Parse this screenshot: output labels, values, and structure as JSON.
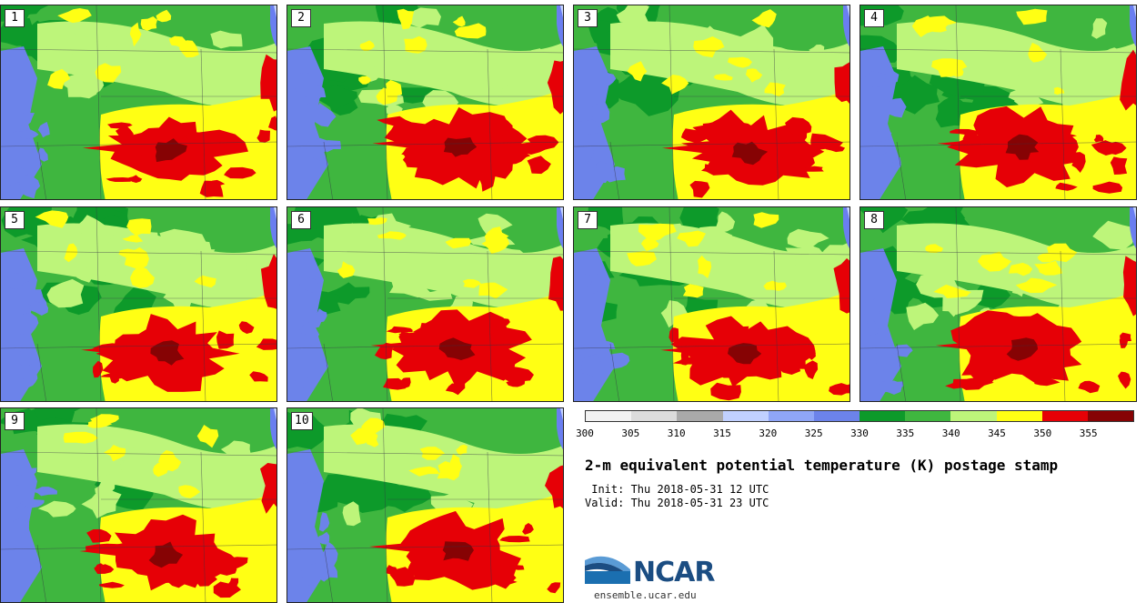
{
  "panels": [
    {
      "label": "1"
    },
    {
      "label": "2"
    },
    {
      "label": "3"
    },
    {
      "label": "4"
    },
    {
      "label": "5"
    },
    {
      "label": "6"
    },
    {
      "label": "7"
    },
    {
      "label": "8"
    },
    {
      "label": "9"
    },
    {
      "label": "10"
    }
  ],
  "colorbar": {
    "colors": [
      "#f2f2f2",
      "#dcdcdc",
      "#aaaaaa",
      "#c1d1ff",
      "#8fa6f7",
      "#6c83ea",
      "#0d9a2a",
      "#3fb63f",
      "#bdf57a",
      "#ffff14",
      "#e60006",
      "#860304"
    ],
    "tick_labels": [
      "300",
      "305",
      "310",
      "315",
      "320",
      "325",
      "330",
      "335",
      "340",
      "345",
      "350",
      "355"
    ]
  },
  "title": "2-m equivalent potential temperature (K) postage stamp",
  "init": " Init: Thu 2018-05-31 12 UTC",
  "valid": "Valid: Thu 2018-05-31 23 UTC",
  "logo": {
    "text": "NCAR",
    "url": "ensemble.ucar.edu"
  },
  "map_colors": {
    "lake": "#6a7ef0",
    "lake_light": "#c5d4ff",
    "dark_green": "#0d9a2a",
    "mid_green": "#3fb63f",
    "light_green": "#bdf57a",
    "yellow": "#ffff14",
    "red": "#e60006",
    "dark_red": "#860304",
    "blue": "#6c83ea"
  }
}
